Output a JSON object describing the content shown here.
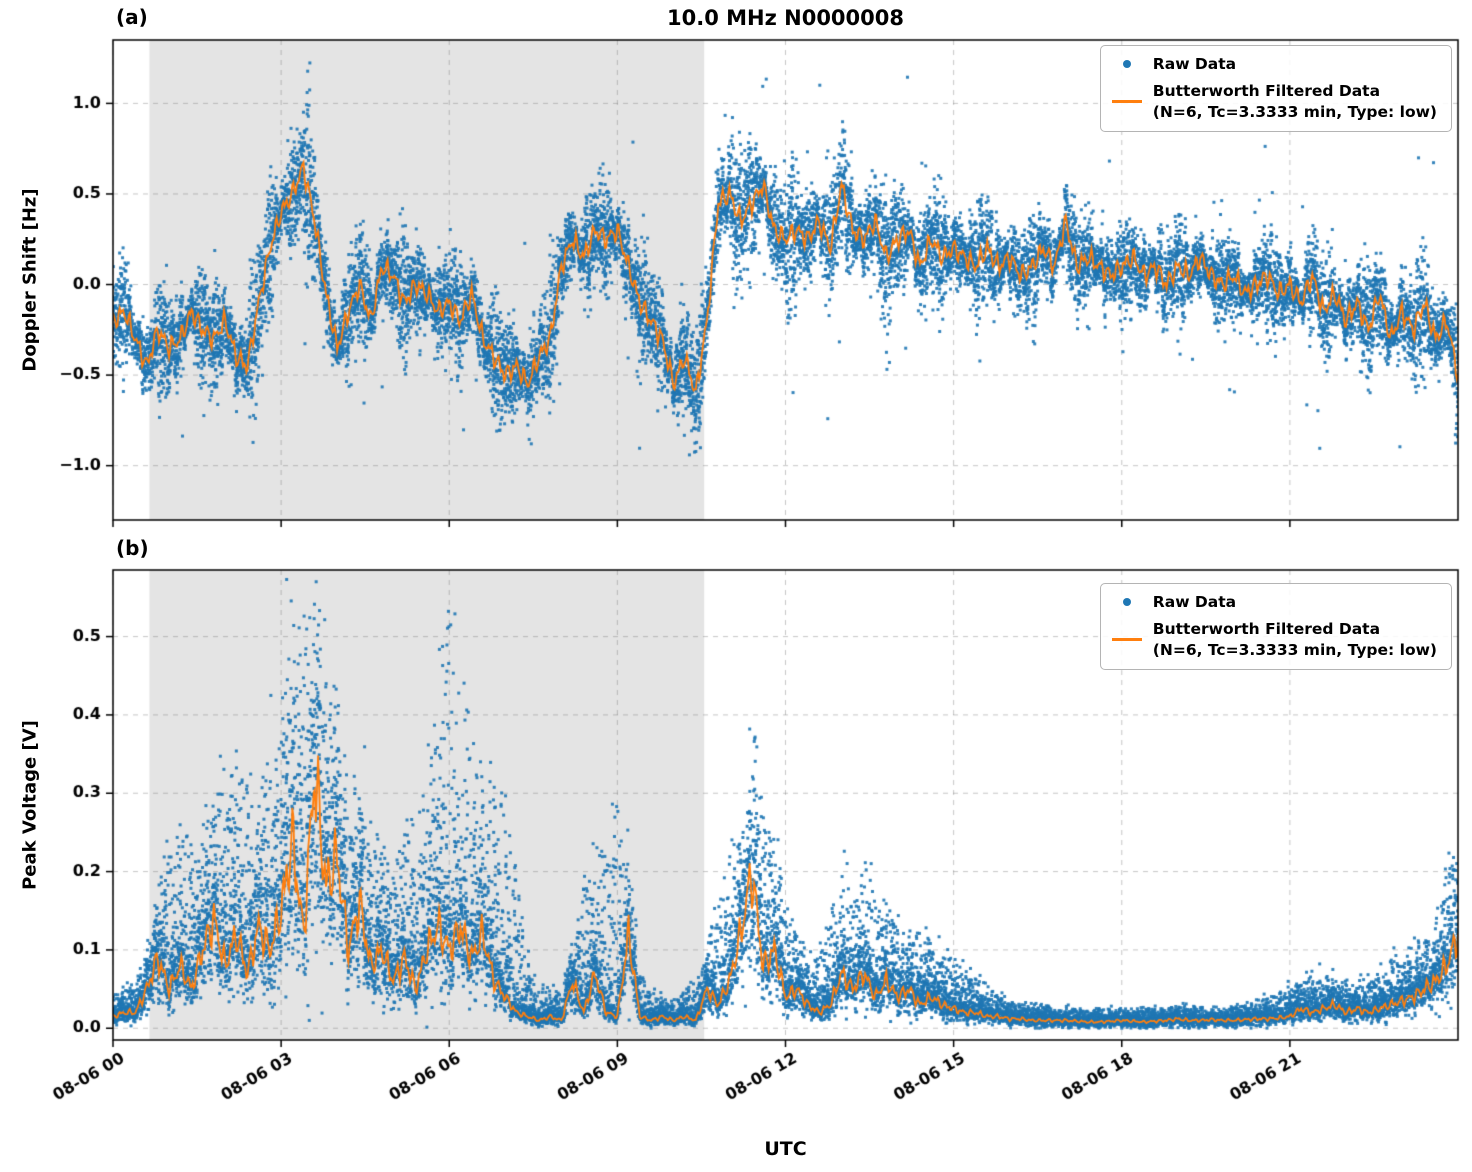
{
  "title": "10.0 MHz N0000008",
  "xlabel": "UTC",
  "legend": {
    "raw_label": "Raw Data",
    "filtered_label": "Butterworth Filtered Data",
    "filtered_sublabel": "(N=6, Tc=3.3333 min, Type: low)"
  },
  "colors": {
    "raw": "#1f77b4",
    "filtered": "#ff7f0e",
    "shading": "#e4e4e4",
    "grid": "rgba(128,128,128,0.45)",
    "spine": "#000000"
  },
  "xlim_hours": [
    0,
    24
  ],
  "x_tick_hours": [
    0,
    3,
    6,
    9,
    12,
    15,
    18,
    21
  ],
  "x_tick_labels": [
    "08-06 00",
    "08-06 03",
    "08-06 06",
    "08-06 09",
    "08-06 12",
    "08-06 15",
    "08-06 18",
    "08-06 21"
  ],
  "chart_data": [
    {
      "type": "scatter",
      "panel_label": "(a)",
      "ylabel": "Doppler Shift [Hz]",
      "ylim": [
        -1.3,
        1.35
      ],
      "y_ticks": [
        -1.0,
        -0.5,
        0.0,
        0.5,
        1.0
      ],
      "shaded_region_hours": [
        0.65,
        10.55
      ],
      "series_names": [
        "Raw Data",
        "Butterworth Filtered Data"
      ],
      "filtered_line": {
        "x_start": 0,
        "x_step": 0.2,
        "y": [
          -0.2,
          -0.15,
          -0.3,
          -0.45,
          -0.25,
          -0.35,
          -0.3,
          -0.15,
          -0.25,
          -0.3,
          -0.2,
          -0.4,
          -0.45,
          -0.1,
          0.2,
          0.4,
          0.5,
          0.65,
          0.35,
          -0.05,
          -0.35,
          -0.15,
          0.0,
          -0.2,
          0.1,
          0.05,
          -0.1,
          0.0,
          -0.05,
          -0.15,
          -0.1,
          -0.2,
          -0.05,
          -0.3,
          -0.4,
          -0.5,
          -0.45,
          -0.55,
          -0.4,
          -0.3,
          0.1,
          0.25,
          0.15,
          0.3,
          0.25,
          0.3,
          0.1,
          -0.1,
          -0.2,
          -0.3,
          -0.55,
          -0.4,
          -0.6,
          -0.2,
          0.45,
          0.5,
          0.35,
          0.45,
          0.55,
          0.3,
          0.25,
          0.3,
          0.25,
          0.35,
          0.2,
          0.55,
          0.3,
          0.25,
          0.35,
          0.15,
          0.25,
          0.3,
          0.1,
          0.25,
          0.15,
          0.2,
          0.15,
          0.1,
          0.2,
          0.1,
          0.15,
          0.05,
          0.1,
          0.2,
          0.1,
          0.35,
          0.1,
          0.15,
          0.1,
          0.05,
          0.1,
          0.15,
          0.05,
          0.1,
          0.0,
          0.1,
          0.05,
          0.15,
          0.05,
          0.0,
          0.05,
          -0.05,
          0.0,
          0.05,
          -0.05,
          0.0,
          -0.1,
          0.05,
          -0.15,
          -0.05,
          -0.2,
          -0.1,
          -0.25,
          -0.05,
          -0.3,
          -0.15,
          -0.25,
          -0.1,
          -0.3,
          -0.2,
          -0.5
        ]
      },
      "scatter_band_halfwidth": {
        "x_start": 0,
        "x_step": 1,
        "y": [
          0.28,
          0.3,
          0.32,
          0.38,
          0.34,
          0.3,
          0.3,
          0.32,
          0.3,
          0.3,
          0.34,
          0.38,
          0.38,
          0.36,
          0.34,
          0.3,
          0.28,
          0.28,
          0.26,
          0.25,
          0.25,
          0.26,
          0.28,
          0.3,
          0.32
        ]
      }
    },
    {
      "type": "scatter",
      "panel_label": "(b)",
      "ylabel": "Peak Voltage [V]",
      "ylim": [
        -0.015,
        0.585
      ],
      "y_ticks": [
        0.0,
        0.1,
        0.2,
        0.3,
        0.4,
        0.5
      ],
      "shaded_region_hours": [
        0.65,
        10.55
      ],
      "series_names": [
        "Raw Data",
        "Butterworth Filtered Data"
      ],
      "filtered_line": {
        "x_start": 0,
        "x_step": 0.2,
        "y": [
          0.015,
          0.02,
          0.02,
          0.05,
          0.09,
          0.05,
          0.08,
          0.05,
          0.1,
          0.14,
          0.08,
          0.12,
          0.07,
          0.13,
          0.1,
          0.15,
          0.24,
          0.12,
          0.33,
          0.18,
          0.22,
          0.1,
          0.16,
          0.08,
          0.1,
          0.06,
          0.09,
          0.05,
          0.1,
          0.13,
          0.1,
          0.13,
          0.09,
          0.12,
          0.06,
          0.04,
          0.02,
          0.015,
          0.01,
          0.015,
          0.01,
          0.06,
          0.02,
          0.07,
          0.02,
          0.015,
          0.12,
          0.015,
          0.01,
          0.015,
          0.01,
          0.015,
          0.01,
          0.05,
          0.03,
          0.06,
          0.12,
          0.2,
          0.08,
          0.1,
          0.04,
          0.05,
          0.03,
          0.02,
          0.03,
          0.07,
          0.05,
          0.07,
          0.04,
          0.06,
          0.04,
          0.05,
          0.03,
          0.04,
          0.03,
          0.025,
          0.02,
          0.02,
          0.015,
          0.015,
          0.012,
          0.012,
          0.01,
          0.01,
          0.01,
          0.01,
          0.009,
          0.008,
          0.008,
          0.009,
          0.01,
          0.009,
          0.008,
          0.009,
          0.01,
          0.012,
          0.01,
          0.01,
          0.011,
          0.01,
          0.01,
          0.011,
          0.012,
          0.012,
          0.013,
          0.015,
          0.025,
          0.02,
          0.025,
          0.03,
          0.02,
          0.025,
          0.02,
          0.025,
          0.03,
          0.035,
          0.04,
          0.05,
          0.06,
          0.08,
          0.12
        ]
      },
      "scatter_upper_envelope": {
        "x_start": 0,
        "x_step": 0.5,
        "y": [
          0.03,
          0.06,
          0.2,
          0.22,
          0.28,
          0.26,
          0.33,
          0.56,
          0.34,
          0.24,
          0.18,
          0.26,
          0.45,
          0.28,
          0.25,
          0.05,
          0.04,
          0.18,
          0.24,
          0.04,
          0.03,
          0.06,
          0.18,
          0.3,
          0.14,
          0.07,
          0.16,
          0.17,
          0.12,
          0.1,
          0.08,
          0.05,
          0.03,
          0.025,
          0.02,
          0.02,
          0.02,
          0.02,
          0.025,
          0.02,
          0.025,
          0.03,
          0.045,
          0.06,
          0.05,
          0.06,
          0.08,
          0.1,
          0.2
        ]
      }
    }
  ]
}
